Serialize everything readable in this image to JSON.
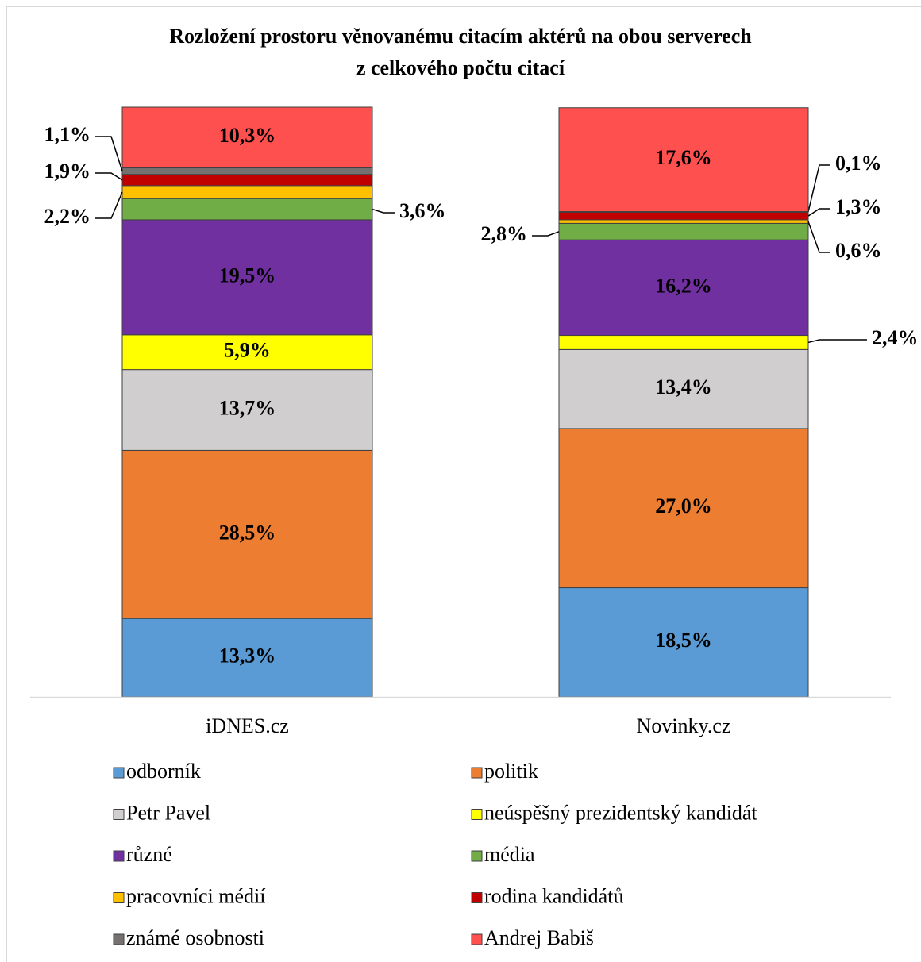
{
  "chart_data": {
    "type": "stacked_bar",
    "title": "Rozložení prostoru věnovanému citacím aktérů na obou serverech",
    "subtitle": "z celkového počtu citací",
    "categories": [
      "iDNES.cz",
      "Novinky.cz"
    ],
    "series": [
      {
        "name": "odborník",
        "color": "#5b9bd5",
        "values": [
          13.3,
          18.5
        ],
        "value_labels": [
          "13,3%",
          "18,5%"
        ]
      },
      {
        "name": "politik",
        "color": "#ed7d31",
        "values": [
          28.5,
          27.0
        ],
        "value_labels": [
          "28,5%",
          "27,0%"
        ]
      },
      {
        "name": "Petr Pavel",
        "color": "#d0cece",
        "values": [
          13.7,
          13.4
        ],
        "value_labels": [
          "13,7%",
          "13,4%"
        ]
      },
      {
        "name": "neúspěšný prezidentský kandidát",
        "color": "#ffff00",
        "values": [
          5.9,
          2.4
        ],
        "value_labels": [
          "5,9%",
          "2,4%"
        ]
      },
      {
        "name": "různé",
        "color": "#7030a0",
        "values": [
          19.5,
          16.2
        ],
        "value_labels": [
          "19,5%",
          "16,2%"
        ]
      },
      {
        "name": "média",
        "color": "#70ad47",
        "values": [
          3.6,
          2.8
        ],
        "value_labels": [
          "3,6%",
          "2,8%"
        ]
      },
      {
        "name": "pracovníci médií",
        "color": "#ffc000",
        "values": [
          2.2,
          0.6
        ],
        "value_labels": [
          "2,2%",
          "0,6%"
        ]
      },
      {
        "name": "rodina kandidátů",
        "color": "#c00000",
        "values": [
          1.9,
          1.3
        ],
        "value_labels": [
          "1,9%",
          "1,3%"
        ]
      },
      {
        "name": "známé osobnosti",
        "color": "#767171",
        "values": [
          1.1,
          0.1
        ],
        "value_labels": [
          "1,1%",
          "0,1%"
        ]
      },
      {
        "name": "Andrej Babiš",
        "color": "#ff5050",
        "values": [
          10.3,
          17.6
        ],
        "value_labels": [
          "10,3%",
          "17,6%"
        ]
      }
    ]
  }
}
